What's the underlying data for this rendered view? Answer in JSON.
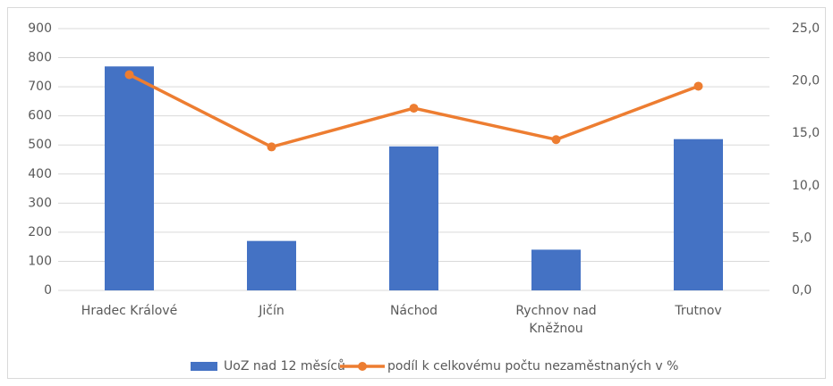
{
  "chart_data": {
    "type": "bar",
    "categories": [
      "Hradec Králové",
      "Jičín",
      "Náchod",
      "Rychnov nad Kněžnou",
      "Trutnov"
    ],
    "series": [
      {
        "name": "UoZ nad 12 měsíců",
        "type": "bar",
        "color": "#4472c4",
        "values": [
          770,
          170,
          495,
          140,
          520
        ]
      },
      {
        "name": "podíl k celkovému počtu nezaměstnaných v %",
        "type": "line",
        "axis": "y2",
        "color": "#ed7d31",
        "values": [
          20.6,
          13.7,
          17.4,
          14.4,
          19.5
        ]
      }
    ],
    "ylim": [
      0,
      900
    ],
    "yticks": [
      0,
      100,
      200,
      300,
      400,
      500,
      600,
      700,
      800,
      900
    ],
    "y2lim": [
      0,
      25
    ],
    "y2ticks": [
      {
        "value": 0,
        "label": "0,0"
      },
      {
        "value": 5,
        "label": "5,0"
      },
      {
        "value": 10,
        "label": "10,0"
      },
      {
        "value": 15,
        "label": "15,0"
      },
      {
        "value": 20,
        "label": "20,0"
      },
      {
        "value": 25,
        "label": "25,0"
      }
    ],
    "grid": true,
    "legend": "bottom"
  }
}
